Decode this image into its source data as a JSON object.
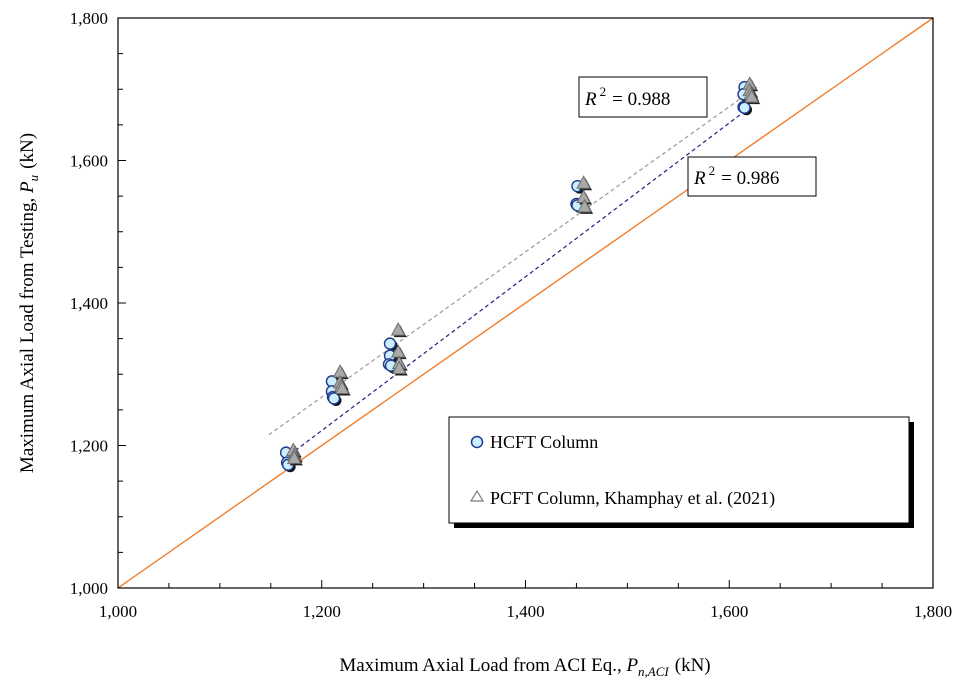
{
  "chart_data": {
    "type": "scatter",
    "xlabel": {
      "main": "Maximum Axial Load from ACI Eq., ",
      "symbol": "P",
      "sub": "n,ACI",
      "unit": "(kN)"
    },
    "ylabel": {
      "main": "Maximum Axial Load from Testing, ",
      "symbol": "P",
      "sub": "u",
      "unit": "(kN)"
    },
    "xlim": [
      1000,
      1800
    ],
    "ylim": [
      1000,
      1800
    ],
    "x_ticks": [
      1000,
      1200,
      1400,
      1600,
      1800
    ],
    "y_ticks": [
      1000,
      1200,
      1400,
      1600,
      1800
    ],
    "x_tick_labels": [
      "1,000",
      "1,200",
      "1,400",
      "1,600",
      "1,800"
    ],
    "y_tick_labels": [
      "1,000",
      "1,200",
      "1,400",
      "1,600",
      "1,800"
    ],
    "grid": false,
    "legend_position": "bottom-right",
    "series": [
      {
        "name": "HCFT Column",
        "marker": "circle",
        "fill": "#ccefff",
        "stroke": "#1f3a8a",
        "points": [
          [
            1165,
            1190
          ],
          [
            1166,
            1176
          ],
          [
            1167,
            1173
          ],
          [
            1210,
            1290
          ],
          [
            1210,
            1276
          ],
          [
            1211,
            1268
          ],
          [
            1212,
            1266
          ],
          [
            1267,
            1343
          ],
          [
            1267,
            1326
          ],
          [
            1266,
            1314
          ],
          [
            1268,
            1312
          ],
          [
            1451,
            1564
          ],
          [
            1450,
            1539
          ],
          [
            1451,
            1537
          ],
          [
            1615,
            1703
          ],
          [
            1614,
            1693
          ],
          [
            1614,
            1675
          ],
          [
            1615,
            1674
          ]
        ]
      },
      {
        "name": "PCFT Column, Khamphay et al. (2021)",
        "marker": "triangle",
        "fill": "#a9a9a9",
        "stroke": "#6e6e6e",
        "points": [
          [
            1172,
            1193
          ],
          [
            1173,
            1186
          ],
          [
            1173,
            1182
          ],
          [
            1218,
            1303
          ],
          [
            1218,
            1288
          ],
          [
            1219,
            1283
          ],
          [
            1220,
            1280
          ],
          [
            1275,
            1362
          ],
          [
            1275,
            1331
          ],
          [
            1276,
            1315
          ],
          [
            1276,
            1308
          ],
          [
            1457,
            1568
          ],
          [
            1457,
            1548
          ],
          [
            1458,
            1535
          ],
          [
            1620,
            1707
          ],
          [
            1620,
            1698
          ],
          [
            1621,
            1693
          ],
          [
            1622,
            1689
          ]
        ]
      }
    ],
    "lines": [
      {
        "name": "equality",
        "color": "#f07f2d",
        "dash": "solid",
        "from": [
          1000,
          1000
        ],
        "to": [
          1800,
          1800
        ]
      },
      {
        "name": "HCFT trend",
        "color": "#1a237e",
        "dash": "dashed",
        "from": [
          1163,
          1181
        ],
        "to": [
          1617,
          1671
        ]
      },
      {
        "name": "PCFT trend",
        "color": "#9a9a9a",
        "dash": "dashed",
        "from": [
          1148,
          1215
        ],
        "to": [
          1627,
          1703
        ]
      }
    ],
    "annotations": [
      {
        "sym": "R",
        "sup": "2",
        "text": "= 0.988"
      },
      {
        "sym": "R",
        "sup": "2",
        "text": "= 0.986"
      }
    ]
  }
}
